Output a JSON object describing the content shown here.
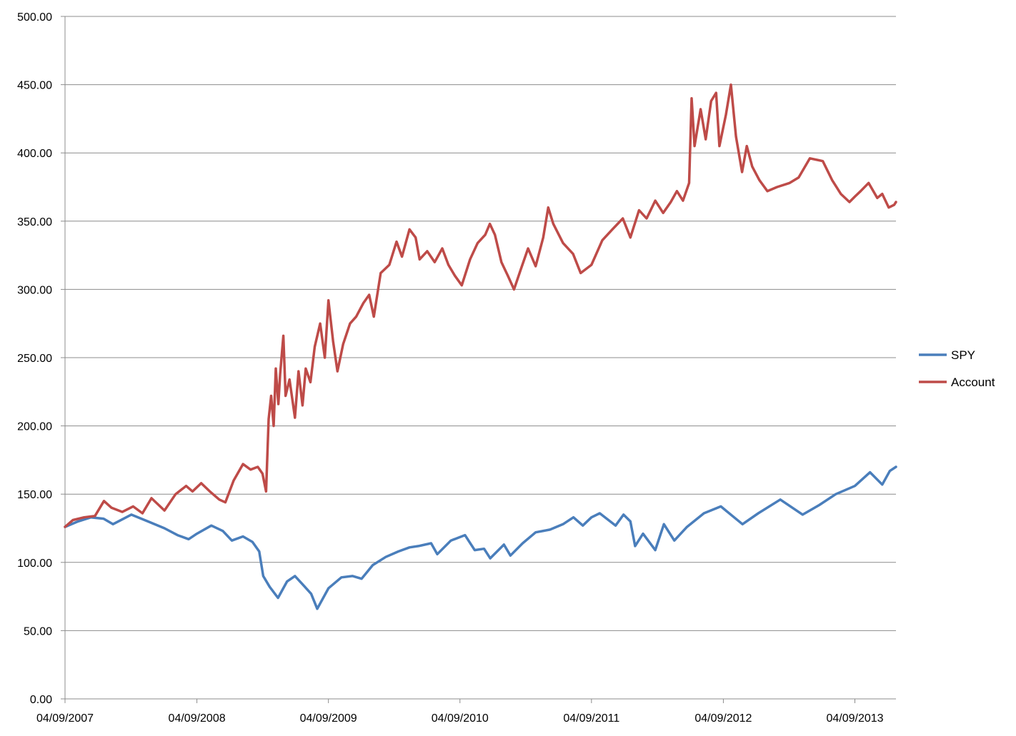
{
  "chart_data": {
    "type": "line",
    "title": "",
    "xlabel": "",
    "ylabel": "",
    "ylim": [
      0,
      500
    ],
    "y_ticks": [
      "0.00",
      "50.00",
      "100.00",
      "150.00",
      "200.00",
      "250.00",
      "300.00",
      "350.00",
      "400.00",
      "450.00",
      "500.00"
    ],
    "xlim": [
      "2007-04-09",
      "2013-08-01"
    ],
    "x_ticks": [
      {
        "date": "2007-04-09",
        "label": "04/09/2007"
      },
      {
        "date": "2008-04-09",
        "label": "04/09/2008"
      },
      {
        "date": "2009-04-09",
        "label": "04/09/2009"
      },
      {
        "date": "2010-04-09",
        "label": "04/09/2010"
      },
      {
        "date": "2011-04-09",
        "label": "04/09/2011"
      },
      {
        "date": "2012-04-09",
        "label": "04/09/2012"
      },
      {
        "date": "2013-04-09",
        "label": "04/09/2013"
      }
    ],
    "grid": "horizontal",
    "legend_position": "right",
    "series": [
      {
        "name": "SPY",
        "color": "#4A7EBB",
        "points": [
          [
            "2007-04-09",
            126
          ],
          [
            "2007-05-15",
            130
          ],
          [
            "2007-06-20",
            133
          ],
          [
            "2007-07-25",
            132
          ],
          [
            "2007-08-20",
            128
          ],
          [
            "2007-10-10",
            135
          ],
          [
            "2007-11-25",
            130
          ],
          [
            "2008-01-10",
            125
          ],
          [
            "2008-02-15",
            120
          ],
          [
            "2008-03-17",
            117
          ],
          [
            "2008-04-09",
            121
          ],
          [
            "2008-05-19",
            127
          ],
          [
            "2008-06-20",
            123
          ],
          [
            "2008-07-15",
            116
          ],
          [
            "2008-08-15",
            119
          ],
          [
            "2008-09-10",
            115
          ],
          [
            "2008-09-29",
            108
          ],
          [
            "2008-10-10",
            90
          ],
          [
            "2008-10-28",
            82
          ],
          [
            "2008-11-20",
            74
          ],
          [
            "2008-12-15",
            86
          ],
          [
            "2009-01-06",
            90
          ],
          [
            "2009-01-27",
            84
          ],
          [
            "2009-02-20",
            77
          ],
          [
            "2009-03-09",
            66
          ],
          [
            "2009-04-09",
            81
          ],
          [
            "2009-05-15",
            89
          ],
          [
            "2009-06-15",
            90
          ],
          [
            "2009-07-10",
            88
          ],
          [
            "2009-08-10",
            98
          ],
          [
            "2009-09-15",
            104
          ],
          [
            "2009-10-20",
            108
          ],
          [
            "2009-11-20",
            111
          ],
          [
            "2009-12-15",
            112
          ],
          [
            "2010-01-19",
            114
          ],
          [
            "2010-02-05",
            106
          ],
          [
            "2010-03-15",
            116
          ],
          [
            "2010-04-23",
            120
          ],
          [
            "2010-05-20",
            109
          ],
          [
            "2010-06-15",
            110
          ],
          [
            "2010-07-02",
            103
          ],
          [
            "2010-08-09",
            113
          ],
          [
            "2010-08-27",
            105
          ],
          [
            "2010-09-30",
            114
          ],
          [
            "2010-11-05",
            122
          ],
          [
            "2010-12-15",
            124
          ],
          [
            "2011-01-20",
            128
          ],
          [
            "2011-02-18",
            133
          ],
          [
            "2011-03-16",
            127
          ],
          [
            "2011-04-09",
            133
          ],
          [
            "2011-05-02",
            136
          ],
          [
            "2011-06-15",
            127
          ],
          [
            "2011-07-07",
            135
          ],
          [
            "2011-07-26",
            130
          ],
          [
            "2011-08-08",
            112
          ],
          [
            "2011-08-30",
            121
          ],
          [
            "2011-10-03",
            109
          ],
          [
            "2011-10-27",
            128
          ],
          [
            "2011-11-25",
            116
          ],
          [
            "2011-12-30",
            126
          ],
          [
            "2012-02-15",
            136
          ],
          [
            "2012-04-02",
            141
          ],
          [
            "2012-06-01",
            128
          ],
          [
            "2012-07-15",
            136
          ],
          [
            "2012-09-14",
            146
          ],
          [
            "2012-11-15",
            135
          ],
          [
            "2012-12-31",
            142
          ],
          [
            "2013-02-15",
            150
          ],
          [
            "2013-04-09",
            156
          ],
          [
            "2013-05-21",
            166
          ],
          [
            "2013-06-24",
            157
          ],
          [
            "2013-07-15",
            167
          ],
          [
            "2013-08-01",
            170
          ]
        ]
      },
      {
        "name": "Account",
        "color": "#BE4B48",
        "points": [
          [
            "2007-04-09",
            126
          ],
          [
            "2007-05-01",
            131
          ],
          [
            "2007-06-01",
            133
          ],
          [
            "2007-07-01",
            134
          ],
          [
            "2007-07-26",
            145
          ],
          [
            "2007-08-16",
            140
          ],
          [
            "2007-09-15",
            137
          ],
          [
            "2007-10-15",
            141
          ],
          [
            "2007-11-10",
            136
          ],
          [
            "2007-12-05",
            147
          ],
          [
            "2008-01-10",
            138
          ],
          [
            "2008-02-10",
            150
          ],
          [
            "2008-03-10",
            156
          ],
          [
            "2008-03-28",
            152
          ],
          [
            "2008-04-21",
            158
          ],
          [
            "2008-05-15",
            152
          ],
          [
            "2008-06-10",
            146
          ],
          [
            "2008-06-27",
            144
          ],
          [
            "2008-07-20",
            160
          ],
          [
            "2008-08-15",
            172
          ],
          [
            "2008-09-05",
            168
          ],
          [
            "2008-09-25",
            170
          ],
          [
            "2008-10-08",
            165
          ],
          [
            "2008-10-18",
            152
          ],
          [
            "2008-10-25",
            205
          ],
          [
            "2008-11-01",
            222
          ],
          [
            "2008-11-08",
            200
          ],
          [
            "2008-11-14",
            242
          ],
          [
            "2008-11-21",
            216
          ],
          [
            "2008-11-26",
            238
          ],
          [
            "2008-12-05",
            266
          ],
          [
            "2008-12-11",
            222
          ],
          [
            "2008-12-22",
            234
          ],
          [
            "2009-01-06",
            206
          ],
          [
            "2009-01-16",
            240
          ],
          [
            "2009-01-27",
            215
          ],
          [
            "2009-02-05",
            242
          ],
          [
            "2009-02-18",
            232
          ],
          [
            "2009-03-02",
            258
          ],
          [
            "2009-03-17",
            275
          ],
          [
            "2009-03-30",
            250
          ],
          [
            "2009-04-09",
            292
          ],
          [
            "2009-04-22",
            262
          ],
          [
            "2009-05-04",
            240
          ],
          [
            "2009-05-20",
            260
          ],
          [
            "2009-06-08",
            275
          ],
          [
            "2009-06-25",
            280
          ],
          [
            "2009-07-15",
            290
          ],
          [
            "2009-07-31",
            296
          ],
          [
            "2009-08-13",
            280
          ],
          [
            "2009-09-01",
            312
          ],
          [
            "2009-09-25",
            318
          ],
          [
            "2009-10-15",
            335
          ],
          [
            "2009-10-30",
            324
          ],
          [
            "2009-11-20",
            344
          ],
          [
            "2009-12-07",
            338
          ],
          [
            "2009-12-18",
            322
          ],
          [
            "2010-01-08",
            328
          ],
          [
            "2010-01-29",
            320
          ],
          [
            "2010-02-19",
            330
          ],
          [
            "2010-03-08",
            318
          ],
          [
            "2010-03-26",
            310
          ],
          [
            "2010-04-14",
            303
          ],
          [
            "2010-05-07",
            322
          ],
          [
            "2010-05-28",
            334
          ],
          [
            "2010-06-18",
            340
          ],
          [
            "2010-07-01",
            348
          ],
          [
            "2010-07-15",
            340
          ],
          [
            "2010-08-02",
            320
          ],
          [
            "2010-08-20",
            310
          ],
          [
            "2010-09-06",
            300
          ],
          [
            "2010-09-24",
            314
          ],
          [
            "2010-10-15",
            330
          ],
          [
            "2010-11-05",
            317
          ],
          [
            "2010-11-26",
            338
          ],
          [
            "2010-12-10",
            360
          ],
          [
            "2010-12-24",
            348
          ],
          [
            "2011-01-20",
            334
          ],
          [
            "2011-02-17",
            326
          ],
          [
            "2011-03-10",
            312
          ],
          [
            "2011-04-09",
            318
          ],
          [
            "2011-05-09",
            336
          ],
          [
            "2011-06-06",
            344
          ],
          [
            "2011-07-05",
            352
          ],
          [
            "2011-07-26",
            338
          ],
          [
            "2011-08-19",
            358
          ],
          [
            "2011-09-09",
            352
          ],
          [
            "2011-10-03",
            365
          ],
          [
            "2011-10-25",
            356
          ],
          [
            "2011-11-15",
            364
          ],
          [
            "2011-12-02",
            372
          ],
          [
            "2011-12-19",
            365
          ],
          [
            "2012-01-05",
            378
          ],
          [
            "2012-01-12",
            440
          ],
          [
            "2012-01-20",
            405
          ],
          [
            "2012-02-06",
            432
          ],
          [
            "2012-02-20",
            410
          ],
          [
            "2012-03-06",
            438
          ],
          [
            "2012-03-20",
            444
          ],
          [
            "2012-03-29",
            405
          ],
          [
            "2012-04-16",
            428
          ],
          [
            "2012-04-30",
            450
          ],
          [
            "2012-05-14",
            412
          ],
          [
            "2012-05-31",
            386
          ],
          [
            "2012-06-13",
            405
          ],
          [
            "2012-06-28",
            390
          ],
          [
            "2012-07-18",
            380
          ],
          [
            "2012-08-09",
            372
          ],
          [
            "2012-09-05",
            375
          ],
          [
            "2012-10-10",
            378
          ],
          [
            "2012-11-04",
            382
          ],
          [
            "2012-12-05",
            396
          ],
          [
            "2013-01-10",
            394
          ],
          [
            "2013-02-05",
            380
          ],
          [
            "2013-03-01",
            370
          ],
          [
            "2013-03-25",
            364
          ],
          [
            "2013-04-09",
            368
          ],
          [
            "2013-04-25",
            372
          ],
          [
            "2013-05-17",
            378
          ],
          [
            "2013-06-10",
            367
          ],
          [
            "2013-06-24",
            370
          ],
          [
            "2013-07-12",
            360
          ],
          [
            "2013-07-27",
            362
          ],
          [
            "2013-08-01",
            364
          ]
        ]
      }
    ]
  }
}
